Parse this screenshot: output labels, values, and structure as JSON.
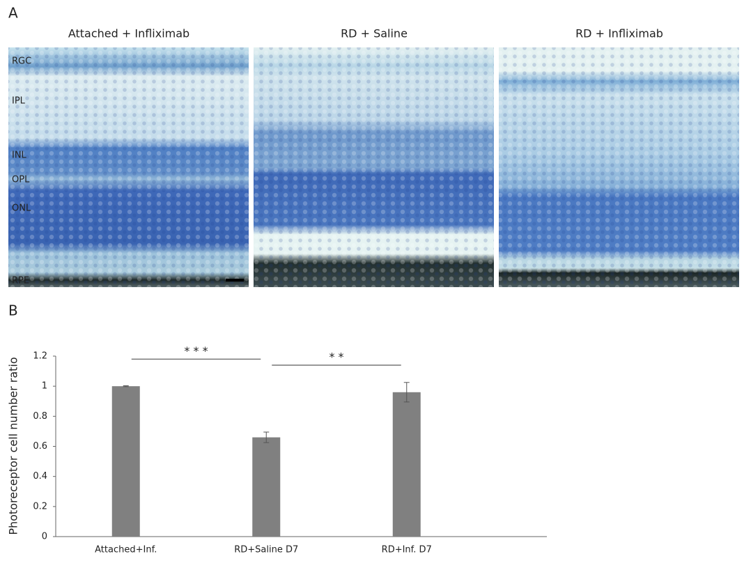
{
  "panel_a": {
    "label": "A",
    "titles": [
      "Attached + Infliximab",
      "RD + Saline",
      "RD + Infliximab"
    ],
    "layer_labels": [
      "RGC",
      "IPL",
      "INL",
      "OPL",
      "ONL",
      "RPE"
    ]
  },
  "chart_data": {
    "type": "bar",
    "panel_label": "B",
    "y_label": "Photoreceptor cell number ratio",
    "categories": [
      "Attached+Inf.",
      "RD+Saline D7",
      "RD+Inf. D7"
    ],
    "values": [
      1.0,
      0.66,
      0.96
    ],
    "errors": [
      0.003,
      0.035,
      0.065
    ],
    "color": "#808080",
    "ylim": [
      0,
      1.2
    ],
    "yticks": [
      0,
      0.2,
      0.4,
      0.6,
      0.8,
      1,
      1.2
    ],
    "grid": false,
    "annotations": [
      {
        "from": 0,
        "to": 1,
        "y": 1.18,
        "label": "* * *"
      },
      {
        "from": 1,
        "to": 2,
        "y": 1.14,
        "label": "* *"
      }
    ]
  }
}
